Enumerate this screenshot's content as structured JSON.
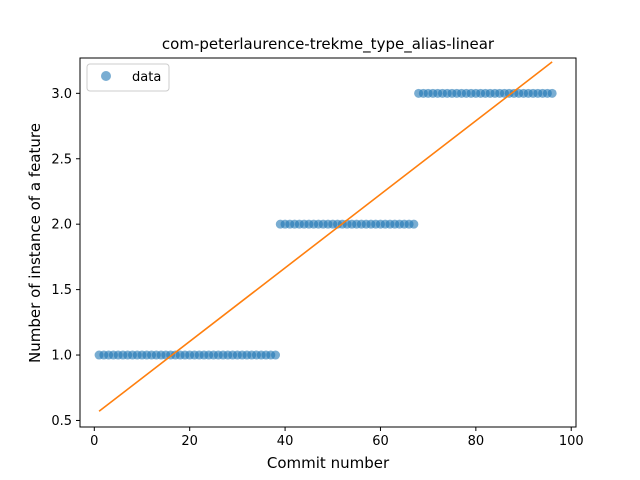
{
  "chart_data": {
    "type": "scatter",
    "title": "com-peterlaurence-trekme_type_alias-linear",
    "xlabel": "Commit number",
    "ylabel": "Number of instance of a feature",
    "xlim": [
      -3,
      101
    ],
    "ylim": [
      0.45,
      3.27
    ],
    "x_ticks": [
      0,
      20,
      40,
      60,
      80,
      100
    ],
    "x_tick_labels": [
      "0",
      "20",
      "40",
      "60",
      "80",
      "100"
    ],
    "y_ticks": [
      0.5,
      1.0,
      1.5,
      2.0,
      2.5,
      3.0
    ],
    "y_tick_labels": [
      "0.5",
      "1.0",
      "1.5",
      "2.0",
      "2.5",
      "3.0"
    ],
    "grid": false,
    "legend": {
      "placement": "top-left",
      "entries": [
        "data"
      ]
    },
    "series": [
      {
        "name": "data",
        "kind": "scatter",
        "color": "#1f77b4",
        "segments": [
          {
            "x_start": 1,
            "x_end": 38,
            "y": 1.0
          },
          {
            "x_start": 39,
            "x_end": 67,
            "y": 2.0
          },
          {
            "x_start": 68,
            "x_end": 96,
            "y": 3.0
          }
        ]
      },
      {
        "kind": "line",
        "color": "#ff7f0e",
        "points": [
          [
            1,
            0.57
          ],
          [
            96,
            3.24
          ]
        ]
      }
    ]
  }
}
